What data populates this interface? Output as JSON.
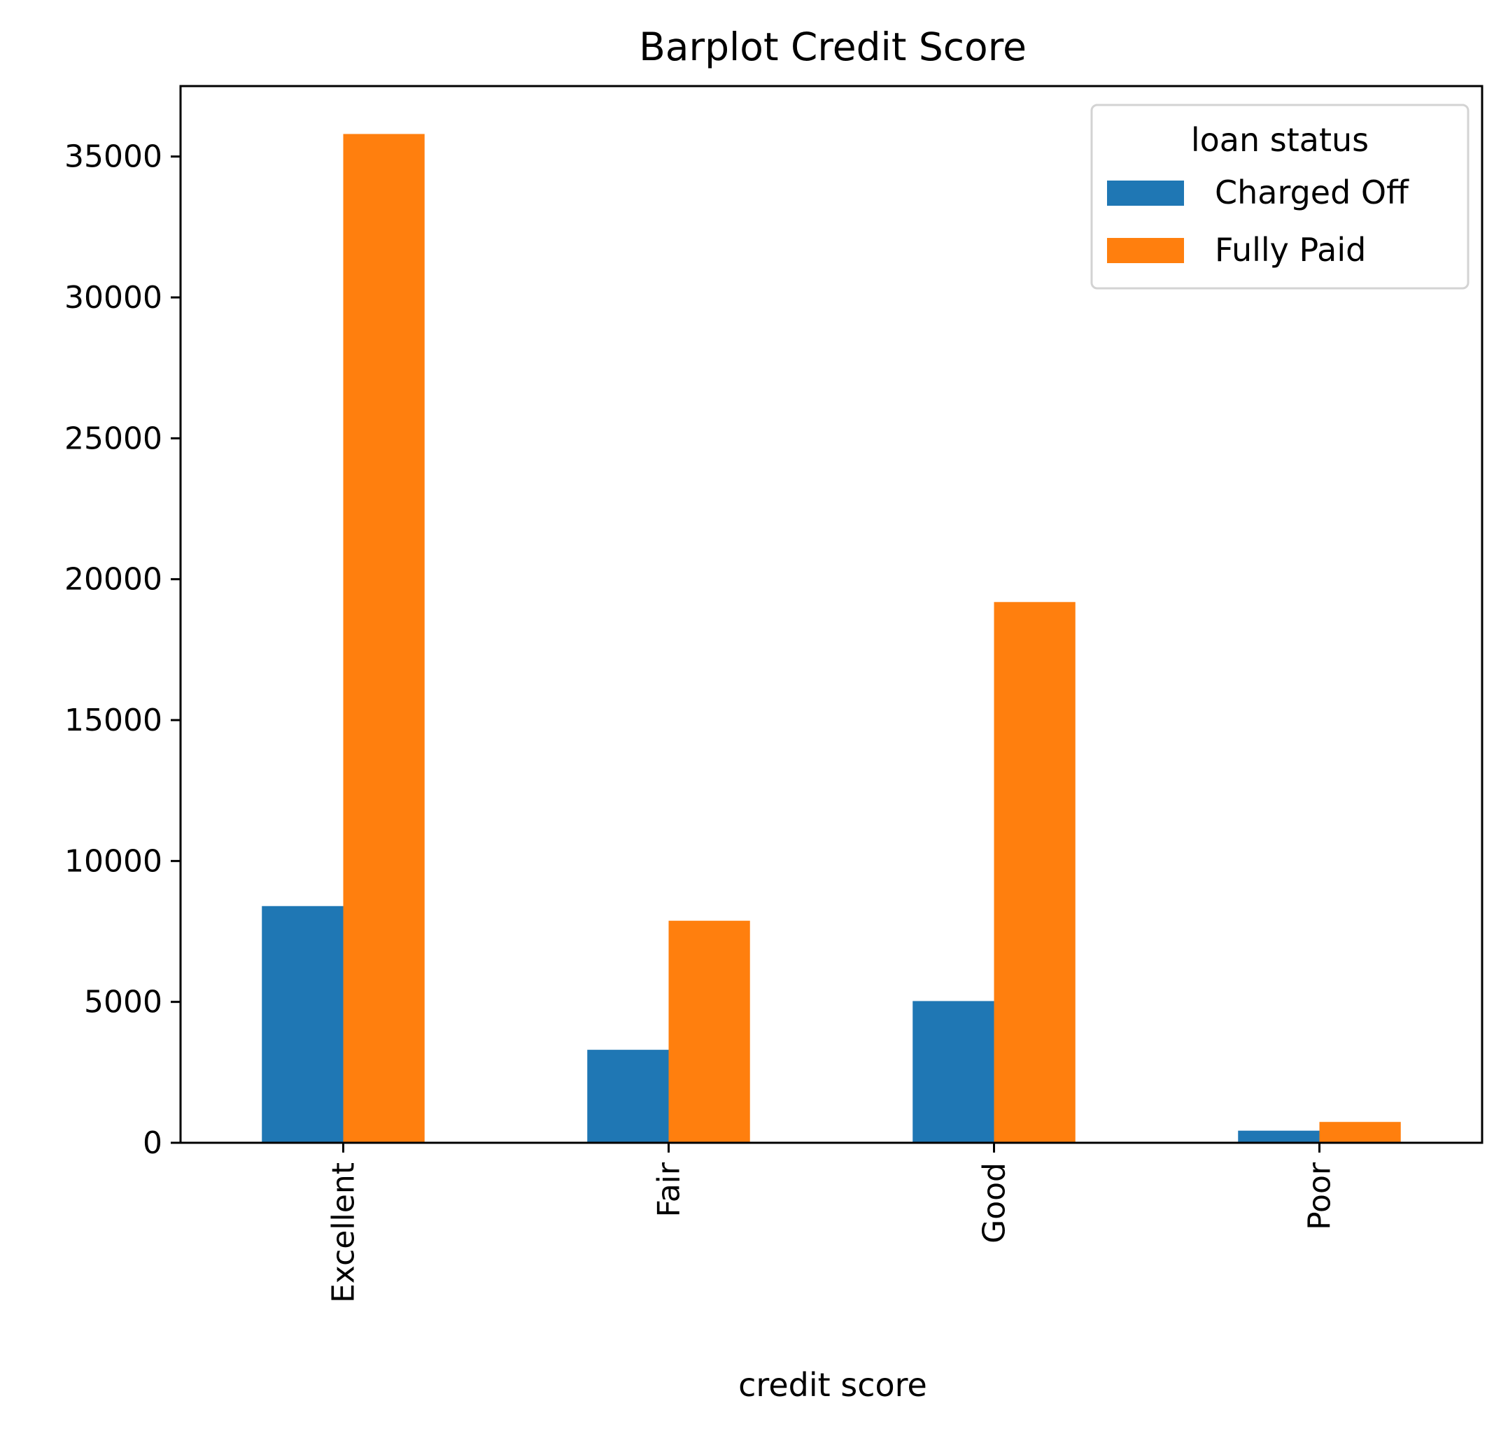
{
  "chart_data": {
    "type": "bar",
    "title": "Barplot Credit Score",
    "xlabel": "credit score",
    "ylabel": "",
    "categories": [
      "Excellent",
      "Fair",
      "Good",
      "Poor"
    ],
    "series": [
      {
        "name": "Charged Off",
        "color": "#1f77b4",
        "values": [
          8400,
          3300,
          5030,
          430
        ]
      },
      {
        "name": "Fully Paid",
        "color": "#ff7f0e",
        "values": [
          35800,
          7880,
          19190,
          740
        ]
      }
    ],
    "ylim": [
      0,
      37500
    ],
    "yticks": [
      0,
      5000,
      10000,
      15000,
      20000,
      25000,
      30000,
      35000
    ],
    "grid": false,
    "legend": {
      "title": "loan status",
      "placement": "top-right"
    }
  }
}
